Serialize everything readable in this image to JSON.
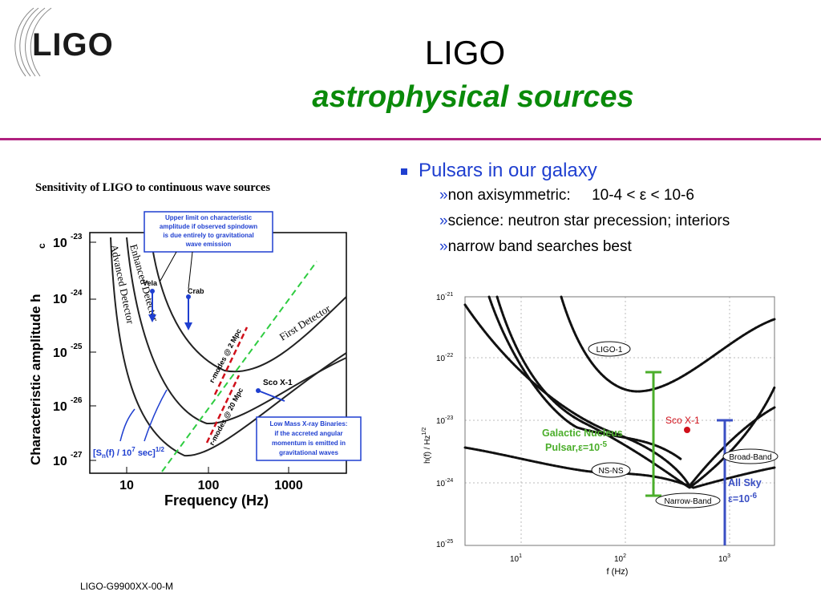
{
  "logo": {
    "text": "LIGO"
  },
  "header": {
    "title": "LIGO",
    "subtitle": "astrophysical sources"
  },
  "bullets": {
    "main": "Pulsars in our galaxy",
    "sub": [
      {
        "glyph": "»",
        "text": "non axisymmetric:     10-4 < ε < 10-6"
      },
      {
        "glyph": "»",
        "text": "science: neutron star precession; interiors"
      },
      {
        "glyph": "»",
        "text": "narrow band searches best"
      }
    ]
  },
  "left_chart": {
    "title": "Sensitivity of LIGO to continuous wave sources",
    "ylabel": "Characteristic amplitude h",
    "ylabel_sub": "c",
    "xlabel": "Frequency (Hz)",
    "xticks": [
      "10",
      "100",
      "1000"
    ],
    "yticks": [
      "10",
      "10",
      "10",
      "10",
      "10"
    ],
    "yexp": [
      "-23",
      "-24",
      "-25",
      "-26",
      "-27"
    ],
    "curves": [
      "Advanced Detector",
      "Enhanced Detector",
      "First Detector"
    ],
    "rmode1": "r-modes @ 2 Mpc",
    "rmode2": "r-modes @ 20 Mpc",
    "vela": "Vela",
    "crab": "Crab",
    "sco": "Sco X-1",
    "box1": [
      "Upper limit on characteristic",
      "amplitude if observed spindown",
      "is due entirely to gravitational",
      "wave emission"
    ],
    "box2": [
      "Low Mass X-ray Binaries:",
      "if the accreted angular",
      "momentum is emitted  in",
      "gravitational waves"
    ],
    "sn_label": "[S",
    "sn_label2": "(f) / 10",
    "sn_label3": "sec]",
    "sn_sub": "n",
    "sn_sup": "7",
    "sn_sup2": "1/2"
  },
  "right_chart": {
    "ylabel": "h(f) / Hz",
    "ylabel_sup": "1/2",
    "xlabel": "f (Hz)",
    "ytick_base": "10",
    "yexp": [
      "-21",
      "-22",
      "-23",
      "-24",
      "-25"
    ],
    "xtick_base": "10",
    "xexp": [
      "1",
      "2",
      "3"
    ],
    "labels": {
      "ligo1": "LIGO-1",
      "broad": "Broad-Band",
      "nsns": "NS-NS",
      "narrow": "Narrow-Band",
      "sco": "Sco X-1",
      "galactic1": "Galactic Nucleus",
      "galactic2": "Pulsar,",
      "galactic_eps": "ε=10",
      "galactic_exp": "-5",
      "allsky1": "All Sky",
      "allsky_eps": "ε=10",
      "allsky_exp": "-6"
    }
  },
  "footer": {
    "doc_id": "LIGO-G9900XX-00-M"
  },
  "colors": {
    "green": "#0a8a0a",
    "magenta": "#b0217f",
    "blue": "#1f3fd0",
    "chart_green": "#4bae2b",
    "chart_blue": "#3a4fc4",
    "chart_red": "#d0101a"
  }
}
